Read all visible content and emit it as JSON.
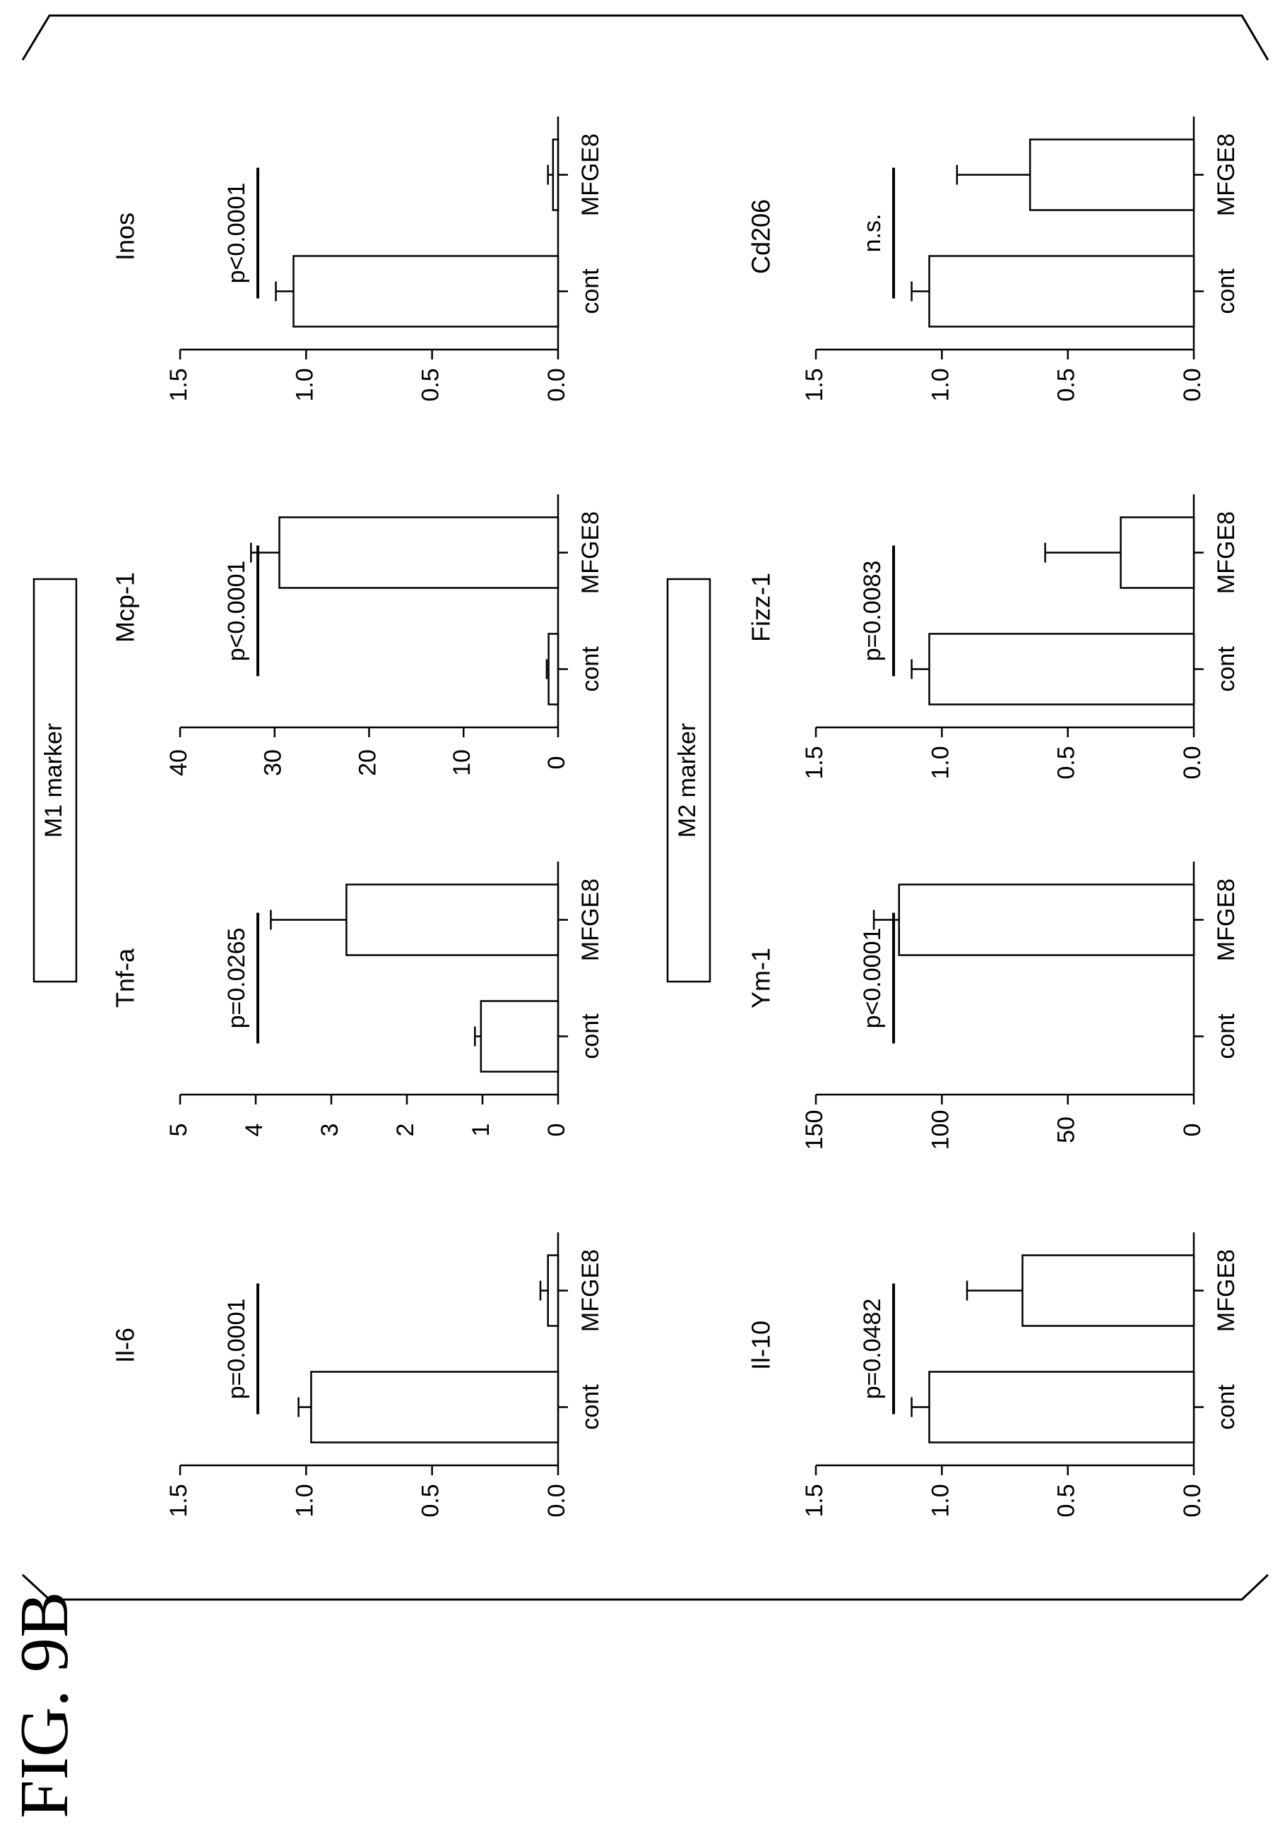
{
  "figure_label": "FIG. 9B",
  "groups": [
    {
      "id": "m1",
      "title": "M1 marker"
    },
    {
      "id": "m2",
      "title": "M2 marker"
    }
  ],
  "chart_data": [
    {
      "type": "bar",
      "group": "m1",
      "title": "Il-6",
      "categories": [
        "cont",
        "MFGE8"
      ],
      "values": [
        0.98,
        0.04
      ],
      "errors": [
        0.05,
        0.03
      ],
      "ylim": [
        0,
        1.5
      ],
      "yticks": [
        "0.0",
        "0.5",
        "1.0",
        "1.5"
      ],
      "significance": "p=0.0001",
      "orientation": "rotated-90-ccw"
    },
    {
      "type": "bar",
      "group": "m1",
      "title": "Tnf-a",
      "categories": [
        "cont",
        "MFGE8"
      ],
      "values": [
        1.02,
        2.8
      ],
      "errors": [
        0.08,
        1.0
      ],
      "ylim": [
        0,
        5
      ],
      "yticks": [
        "0",
        "1",
        "2",
        "3",
        "4",
        "5"
      ],
      "significance": "p=0.0265",
      "orientation": "rotated-90-ccw"
    },
    {
      "type": "bar",
      "group": "m1",
      "title": "Mcp-1",
      "categories": [
        "cont",
        "MFGE8"
      ],
      "values": [
        1.0,
        29.5
      ],
      "errors": [
        0.2,
        3.0
      ],
      "ylim": [
        0,
        40
      ],
      "yticks": [
        "0",
        "10",
        "20",
        "30",
        "40"
      ],
      "significance": "p<0.0001",
      "orientation": "rotated-90-ccw"
    },
    {
      "type": "bar",
      "group": "m1",
      "title": "Inos",
      "categories": [
        "cont",
        "MFGE8"
      ],
      "values": [
        1.05,
        0.02
      ],
      "errors": [
        0.07,
        0.02
      ],
      "ylim": [
        0,
        1.5
      ],
      "yticks": [
        "0.0",
        "0.5",
        "1.0",
        "1.5"
      ],
      "significance": "p<0.0001",
      "orientation": "rotated-90-ccw"
    },
    {
      "type": "bar",
      "group": "m2",
      "title": "Il-10",
      "categories": [
        "cont",
        "MFGE8"
      ],
      "values": [
        1.05,
        0.68
      ],
      "errors": [
        0.07,
        0.22
      ],
      "ylim": [
        0,
        1.5
      ],
      "yticks": [
        "0.0",
        "0.5",
        "1.0",
        "1.5"
      ],
      "significance": "p=0.0482",
      "orientation": "rotated-90-ccw"
    },
    {
      "type": "bar",
      "group": "m2",
      "title": "Ym-1",
      "categories": [
        "cont",
        "MFGE8"
      ],
      "values": [
        0,
        117
      ],
      "errors": [
        0,
        10
      ],
      "ylim": [
        0,
        150
      ],
      "yticks": [
        "0",
        "50",
        "100",
        "150"
      ],
      "significance": "p<0.0001",
      "orientation": "rotated-90-ccw"
    },
    {
      "type": "bar",
      "group": "m2",
      "title": "Fizz-1",
      "categories": [
        "cont",
        "MFGE8"
      ],
      "values": [
        1.05,
        0.29
      ],
      "errors": [
        0.07,
        0.3
      ],
      "ylim": [
        0,
        1.5
      ],
      "yticks": [
        "0.0",
        "0.5",
        "1.0",
        "1.5"
      ],
      "significance": "p=0.0083",
      "orientation": "rotated-90-ccw"
    },
    {
      "type": "bar",
      "group": "m2",
      "title": "Cd206",
      "categories": [
        "cont",
        "MFGE8"
      ],
      "values": [
        1.05,
        0.65
      ],
      "errors": [
        0.07,
        0.29
      ],
      "ylim": [
        0,
        1.5
      ],
      "yticks": [
        "0.0",
        "0.5",
        "1.0",
        "1.5"
      ],
      "significance": "n.s.",
      "orientation": "rotated-90-ccw"
    }
  ]
}
